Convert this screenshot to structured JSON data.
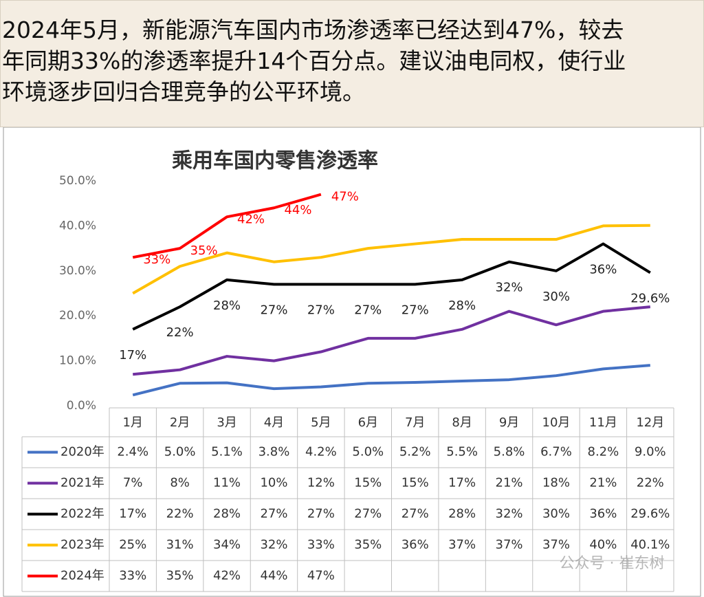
{
  "header": {
    "text_lines": [
      "2024年5月，新能源汽车国内市场渗透率已经达到47%，较去",
      "年同期33%的渗透率提升14个百分点。建议油电同权，使行业",
      "环境逐步回归合理竞争的公平环境。"
    ]
  },
  "chart_data": {
    "type": "line",
    "title": "乘用车国内零售渗透率",
    "categories": [
      "1月",
      "2月",
      "3月",
      "4月",
      "5月",
      "6月",
      "7月",
      "8月",
      "9月",
      "10月",
      "11月",
      "12月"
    ],
    "ylim": [
      0,
      50
    ],
    "yticks": [
      {
        "value": 0,
        "label": "0.0%"
      },
      {
        "value": 10,
        "label": "10.0%"
      },
      {
        "value": 20,
        "label": "20.0%"
      },
      {
        "value": 30,
        "label": "30.0%"
      },
      {
        "value": 40,
        "label": "40.0%"
      },
      {
        "value": 50,
        "label": "50.0%"
      }
    ],
    "grid": false,
    "series": [
      {
        "name": "2020年",
        "color": "#4472c4",
        "values": [
          2.4,
          5.0,
          5.1,
          3.8,
          4.2,
          5.0,
          5.2,
          5.5,
          5.8,
          6.7,
          8.2,
          9.0
        ],
        "value_labels": [
          "2.4%",
          "5.0%",
          "5.1%",
          "3.8%",
          "4.2%",
          "5.0%",
          "5.2%",
          "5.5%",
          "5.8%",
          "6.7%",
          "8.2%",
          "9.0%"
        ],
        "chart_labels": false
      },
      {
        "name": "2021年",
        "color": "#7030a0",
        "values": [
          7,
          8,
          11,
          10,
          12,
          15,
          15,
          17,
          21,
          18,
          21,
          22
        ],
        "value_labels": [
          "7%",
          "8%",
          "11%",
          "10%",
          "12%",
          "15%",
          "15%",
          "17%",
          "21%",
          "18%",
          "21%",
          "22%"
        ],
        "chart_labels": false
      },
      {
        "name": "2022年",
        "color": "#000000",
        "values": [
          17,
          22,
          28,
          27,
          27,
          27,
          27,
          28,
          32,
          30,
          36,
          29.6
        ],
        "value_labels": [
          "17%",
          "22%",
          "28%",
          "27%",
          "27%",
          "27%",
          "27%",
          "28%",
          "32%",
          "30%",
          "36%",
          "29.6%"
        ],
        "chart_labels": true
      },
      {
        "name": "2023年",
        "color": "#ffc000",
        "values": [
          25,
          31,
          34,
          32,
          33,
          35,
          36,
          37,
          37,
          37,
          40,
          40.1
        ],
        "value_labels": [
          "25%",
          "31%",
          "34%",
          "32%",
          "33%",
          "35%",
          "36%",
          "37%",
          "37%",
          "37%",
          "40%",
          "40.1%"
        ],
        "chart_labels": false
      },
      {
        "name": "2024年",
        "color": "#ff0000",
        "values": [
          33,
          35,
          42,
          44,
          47,
          null,
          null,
          null,
          null,
          null,
          null,
          null
        ],
        "value_labels": [
          "33%",
          "35%",
          "42%",
          "44%",
          "47%",
          null,
          null,
          null,
          null,
          null,
          null,
          null
        ],
        "chart_labels": true
      }
    ],
    "watermark": "公众号 · 崔东树"
  }
}
